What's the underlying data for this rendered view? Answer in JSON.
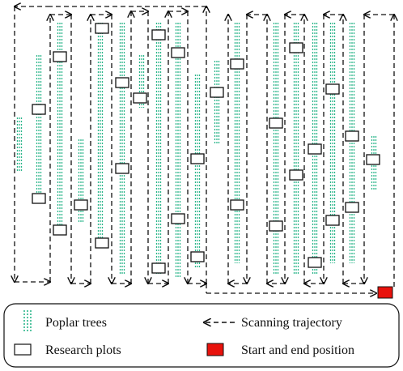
{
  "legend": {
    "items": [
      {
        "key": "trees",
        "label": "Poplar trees"
      },
      {
        "key": "trajectory",
        "label": "Scanning trajectory"
      },
      {
        "key": "plots",
        "label": "Research plots"
      },
      {
        "key": "start_end",
        "label": "Start and end position"
      }
    ]
  },
  "colors": {
    "tree": "#2bb58a",
    "trajectory": "#111111",
    "plot_border": "#111111",
    "start_end": "#e8120c"
  }
}
